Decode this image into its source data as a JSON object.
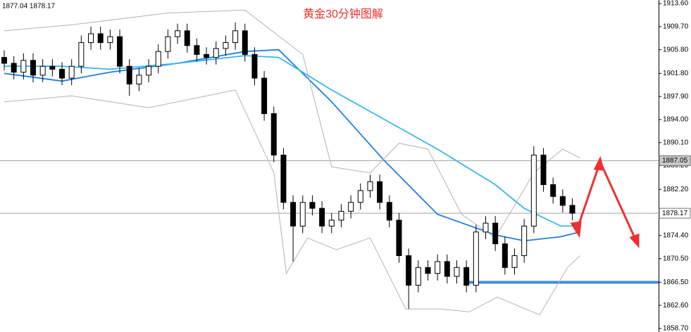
{
  "chart_data": {
    "type": "candlestick",
    "title": "黄金30分钟图解",
    "header": "1877.04 1878.17",
    "ylim": [
      1858.1,
      1914.2
    ],
    "yticks": [
      {
        "value": 1913.6,
        "label": "1913.60"
      },
      {
        "value": 1909.7,
        "label": "1909.70"
      },
      {
        "value": 1905.8,
        "label": "1905.80"
      },
      {
        "value": 1901.8,
        "label": "1901.80"
      },
      {
        "value": 1897.9,
        "label": "1897.90"
      },
      {
        "value": 1894,
        "label": "1894.00"
      },
      {
        "value": 1890.1,
        "label": "1890.10"
      },
      {
        "value": 1886.2,
        "label": "1886.20"
      },
      {
        "value": 1882.2,
        "label": "1882.20"
      },
      {
        "value": 1878.3,
        "label": "1878.30"
      },
      {
        "value": 1874.4,
        "label": "1874.40"
      },
      {
        "value": 1870.5,
        "label": "1870.50"
      },
      {
        "value": 1866.5,
        "label": "1866.50"
      },
      {
        "value": 1862.6,
        "label": "1862.60"
      },
      {
        "value": 1858.7,
        "label": "1858.70"
      }
    ],
    "open": [
      1904.5,
      1903.5,
      1902,
      1904,
      1901.5,
      1903,
      1902.5,
      1901,
      1903,
      1907,
      1908.5,
      1907,
      1908,
      1903,
      1900,
      1901.5,
      1903,
      1905.5,
      1908,
      1909,
      1906.5,
      1905,
      1904.5,
      1906,
      1907,
      1909,
      1905,
      1901,
      1895,
      1888,
      1880,
      1876,
      1880,
      1879,
      1876,
      1877,
      1878.5,
      1880,
      1882,
      1883.5,
      1880,
      1877,
      1871,
      1866,
      1869,
      1868,
      1870,
      1867.5,
      1869,
      1866,
      1875,
      1876.5,
      1873,
      1869,
      1871,
      1876,
      1888,
      1883,
      1881,
      1879.5
    ],
    "high": [
      1905.7,
      1904.7,
      1905.2,
      1905.2,
      1904.2,
      1904.2,
      1903.7,
      1904.2,
      1908.2,
      1909.7,
      1909.7,
      1909.2,
      1909.2,
      1904.2,
      1902.7,
      1904.2,
      1906.7,
      1909.2,
      1910.2,
      1910.2,
      1907.7,
      1906.2,
      1907.2,
      1908.2,
      1910.4,
      1910.2,
      1906.2,
      1902.2,
      1896.2,
      1889.2,
      1881.2,
      1881.2,
      1881.2,
      1880.2,
      1878.2,
      1879.7,
      1881.2,
      1883.2,
      1884.7,
      1884.7,
      1881.2,
      1878.2,
      1872.2,
      1870.2,
      1870.2,
      1871.2,
      1871.2,
      1870.2,
      1870.2,
      1876.2,
      1877.7,
      1877.7,
      1874.2,
      1872.2,
      1877.2,
      1889.5,
      1889.2,
      1884.2,
      1882.2,
      1880.7
    ],
    "low": [
      1902.3,
      1900.8,
      1900.8,
      1900.3,
      1900.3,
      1901.3,
      1899.8,
      1899.8,
      1901.8,
      1905.8,
      1905.8,
      1905.8,
      1901.8,
      1898,
      1898.8,
      1900.3,
      1901.8,
      1904.3,
      1906.8,
      1905.3,
      1903.8,
      1903.3,
      1903.3,
      1904.8,
      1905.8,
      1903.8,
      1899.8,
      1893.8,
      1886.8,
      1878.8,
      1870,
      1874.8,
      1877.8,
      1874.8,
      1874.8,
      1875.8,
      1877.3,
      1878.8,
      1880.8,
      1878.8,
      1875.8,
      1869.8,
      1862,
      1864.8,
      1866.8,
      1866.8,
      1866.3,
      1866.3,
      1864.8,
      1864.8,
      1873.8,
      1871.8,
      1867.8,
      1867.8,
      1869.8,
      1874.8,
      1881.8,
      1879.8,
      1878.3,
      1877
    ],
    "close": [
      1903.5,
      1902,
      1904,
      1901.5,
      1903,
      1902.5,
      1901,
      1903,
      1907,
      1908.5,
      1907,
      1908,
      1903,
      1900,
      1901.5,
      1903,
      1905.5,
      1908,
      1909,
      1906.5,
      1905,
      1904.5,
      1906,
      1907,
      1909,
      1905,
      1901,
      1895,
      1888,
      1880,
      1876,
      1880,
      1879,
      1876,
      1877,
      1878.5,
      1880,
      1882,
      1883.5,
      1880,
      1877,
      1871,
      1866,
      1869,
      1868,
      1870,
      1867.5,
      1869,
      1866,
      1875,
      1876.5,
      1873,
      1869,
      1871,
      1876,
      1888,
      1883,
      1881,
      1879.5,
      1878.17
    ],
    "lines": [
      {
        "color": "#1e7fe0",
        "x": [
          0,
          6,
          11,
          18,
          25,
          28.5,
          34,
          39.5,
          45,
          51,
          54,
          57.8,
          59.8
        ],
        "values": [
          1901.8,
          1900.5,
          1902,
          1903.5,
          1905.5,
          1905.8,
          1897,
          1887,
          1878,
          1874.5,
          1873.5,
          1874.2,
          1875
        ]
      },
      {
        "color": "#38b6ec",
        "x": [
          0,
          6,
          11,
          18,
          25,
          28.5,
          34,
          39.5,
          45,
          51,
          54,
          57.8,
          59.8
        ],
        "values": [
          1903,
          1903,
          1902.5,
          1903.5,
          1904.8,
          1904.5,
          1899,
          1894,
          1889,
          1883,
          1879,
          1876,
          1876
        ]
      },
      {
        "color": "#b4b4b4",
        "x": [
          0,
          7,
          17,
          25,
          31,
          34,
          38,
          41,
          44,
          47.5,
          51,
          55,
          58,
          59.8
        ],
        "values": [
          1909,
          1910,
          1912,
          1912.5,
          1905,
          1886,
          1885,
          1890,
          1889,
          1878,
          1874,
          1885,
          1889,
          1887.5
        ]
      },
      {
        "color": "#b4b4b4",
        "x": [
          0,
          7,
          15,
          24,
          28,
          29.3,
          31.5,
          34.5,
          38,
          41.7,
          45.4,
          48.3,
          51.2,
          55.6,
          58.5,
          59.8
        ],
        "values": [
          1897,
          1898,
          1896,
          1899,
          1885,
          1868,
          1874,
          1872,
          1874,
          1862,
          1862,
          1861.5,
          1864,
          1861,
          1869,
          1871
        ]
      }
    ],
    "price_lines": [
      {
        "value": 1887.05,
        "label": "1887.05"
      },
      {
        "value": 1878.17,
        "label": "1878.17"
      }
    ],
    "support": {
      "value": 1866.5,
      "x_start": 48,
      "color": "#3d8fe0"
    }
  }
}
